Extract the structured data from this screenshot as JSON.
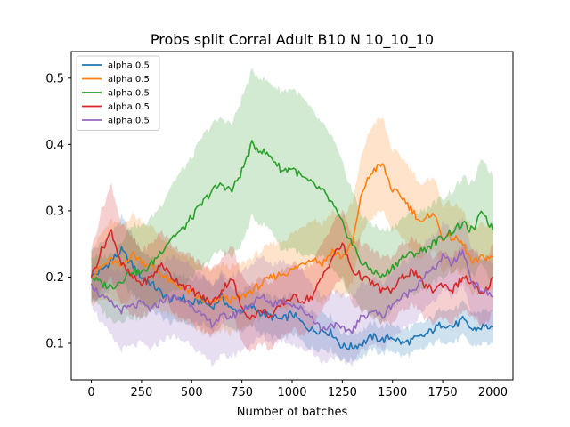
{
  "chart_data": {
    "type": "line",
    "title": "Probs split Corral Adult B10 N 10_10_10",
    "xlabel": "Number of batches",
    "ylabel": "",
    "xlim": [
      -100,
      2100
    ],
    "ylim": [
      0.045,
      0.54
    ],
    "xticks": [
      0,
      250,
      500,
      750,
      1000,
      1250,
      1500,
      1750,
      2000
    ],
    "yticks": [
      0.1,
      0.2,
      0.3,
      0.4,
      0.5
    ],
    "grid": false,
    "legend_position": "top-left",
    "series": [
      {
        "name": "alpha 0.5",
        "color": "#1f77b4",
        "x": [
          0,
          50,
          100,
          150,
          200,
          250,
          300,
          350,
          400,
          450,
          500,
          550,
          600,
          650,
          700,
          750,
          800,
          850,
          900,
          950,
          1000,
          1050,
          1100,
          1150,
          1200,
          1250,
          1300,
          1350,
          1400,
          1450,
          1500,
          1550,
          1600,
          1650,
          1700,
          1750,
          1800,
          1850,
          1900,
          1950,
          2000
        ],
        "y": [
          0.2,
          0.21,
          0.225,
          0.24,
          0.22,
          0.2,
          0.19,
          0.175,
          0.165,
          0.17,
          0.16,
          0.165,
          0.155,
          0.17,
          0.15,
          0.15,
          0.155,
          0.145,
          0.14,
          0.135,
          0.145,
          0.13,
          0.12,
          0.12,
          0.115,
          0.095,
          0.095,
          0.1,
          0.11,
          0.105,
          0.11,
          0.1,
          0.105,
          0.11,
          0.12,
          0.13,
          0.125,
          0.135,
          0.12,
          0.125,
          0.125
        ],
        "band": [
          0.04,
          0.04,
          0.04,
          0.05,
          0.045,
          0.04,
          0.04,
          0.035,
          0.035,
          0.035,
          0.035,
          0.035,
          0.035,
          0.035,
          0.03,
          0.03,
          0.03,
          0.03,
          0.03,
          0.03,
          0.03,
          0.028,
          0.028,
          0.028,
          0.025,
          0.02,
          0.02,
          0.02,
          0.02,
          0.02,
          0.02,
          0.02,
          0.02,
          0.02,
          0.02,
          0.025,
          0.025,
          0.025,
          0.025,
          0.025,
          0.025
        ]
      },
      {
        "name": "alpha 0.5",
        "color": "#ff7f0e",
        "x": [
          0,
          50,
          100,
          150,
          200,
          250,
          300,
          350,
          400,
          450,
          500,
          550,
          600,
          650,
          700,
          750,
          800,
          850,
          900,
          950,
          1000,
          1050,
          1100,
          1150,
          1200,
          1250,
          1300,
          1350,
          1400,
          1450,
          1500,
          1550,
          1600,
          1650,
          1700,
          1750,
          1800,
          1850,
          1900,
          1950,
          2000
        ],
        "y": [
          0.2,
          0.215,
          0.225,
          0.215,
          0.235,
          0.225,
          0.215,
          0.205,
          0.19,
          0.185,
          0.175,
          0.165,
          0.16,
          0.17,
          0.165,
          0.17,
          0.18,
          0.19,
          0.2,
          0.205,
          0.21,
          0.22,
          0.23,
          0.22,
          0.24,
          0.23,
          0.25,
          0.33,
          0.36,
          0.37,
          0.33,
          0.32,
          0.3,
          0.28,
          0.3,
          0.26,
          0.26,
          0.25,
          0.22,
          0.23,
          0.23
        ],
        "band": [
          0.04,
          0.05,
          0.06,
          0.06,
          0.06,
          0.06,
          0.06,
          0.055,
          0.05,
          0.05,
          0.05,
          0.05,
          0.05,
          0.05,
          0.05,
          0.05,
          0.05,
          0.05,
          0.05,
          0.05,
          0.055,
          0.055,
          0.06,
          0.06,
          0.06,
          0.06,
          0.06,
          0.06,
          0.07,
          0.07,
          0.06,
          0.06,
          0.06,
          0.055,
          0.055,
          0.05,
          0.05,
          0.05,
          0.05,
          0.05,
          0.05
        ]
      },
      {
        "name": "alpha 0.5",
        "color": "#2ca02c",
        "x": [
          0,
          50,
          100,
          150,
          200,
          250,
          300,
          350,
          400,
          450,
          500,
          550,
          600,
          650,
          700,
          750,
          800,
          850,
          900,
          950,
          1000,
          1050,
          1100,
          1150,
          1200,
          1250,
          1300,
          1350,
          1400,
          1450,
          1500,
          1550,
          1600,
          1650,
          1700,
          1750,
          1800,
          1850,
          1900,
          1950,
          2000
        ],
        "y": [
          0.2,
          0.19,
          0.185,
          0.195,
          0.21,
          0.205,
          0.22,
          0.24,
          0.26,
          0.27,
          0.29,
          0.31,
          0.33,
          0.34,
          0.33,
          0.36,
          0.4,
          0.39,
          0.38,
          0.36,
          0.365,
          0.35,
          0.34,
          0.33,
          0.31,
          0.28,
          0.25,
          0.22,
          0.21,
          0.2,
          0.215,
          0.23,
          0.235,
          0.24,
          0.25,
          0.26,
          0.27,
          0.28,
          0.27,
          0.3,
          0.27
        ],
        "band": [
          0.03,
          0.04,
          0.05,
          0.06,
          0.07,
          0.07,
          0.07,
          0.07,
          0.08,
          0.09,
          0.09,
          0.1,
          0.1,
          0.1,
          0.1,
          0.11,
          0.11,
          0.11,
          0.11,
          0.12,
          0.12,
          0.12,
          0.11,
          0.1,
          0.1,
          0.09,
          0.08,
          0.07,
          0.07,
          0.07,
          0.06,
          0.06,
          0.06,
          0.06,
          0.06,
          0.06,
          0.06,
          0.07,
          0.07,
          0.08,
          0.08
        ]
      },
      {
        "name": "alpha 0.5",
        "color": "#d62728",
        "x": [
          0,
          50,
          100,
          150,
          200,
          250,
          300,
          350,
          400,
          450,
          500,
          550,
          600,
          650,
          700,
          750,
          800,
          850,
          900,
          950,
          1000,
          1050,
          1100,
          1150,
          1200,
          1250,
          1300,
          1350,
          1400,
          1450,
          1500,
          1550,
          1600,
          1650,
          1700,
          1750,
          1800,
          1850,
          1900,
          1950,
          2000
        ],
        "y": [
          0.2,
          0.24,
          0.27,
          0.22,
          0.2,
          0.19,
          0.2,
          0.22,
          0.2,
          0.19,
          0.18,
          0.17,
          0.16,
          0.18,
          0.2,
          0.15,
          0.14,
          0.15,
          0.14,
          0.16,
          0.17,
          0.165,
          0.17,
          0.2,
          0.23,
          0.25,
          0.21,
          0.2,
          0.19,
          0.18,
          0.18,
          0.2,
          0.21,
          0.19,
          0.18,
          0.19,
          0.18,
          0.2,
          0.19,
          0.17,
          0.2
        ],
        "band": [
          0.04,
          0.06,
          0.07,
          0.06,
          0.06,
          0.05,
          0.05,
          0.05,
          0.05,
          0.05,
          0.05,
          0.05,
          0.05,
          0.05,
          0.05,
          0.05,
          0.05,
          0.05,
          0.05,
          0.05,
          0.05,
          0.05,
          0.05,
          0.05,
          0.05,
          0.05,
          0.05,
          0.05,
          0.05,
          0.05,
          0.05,
          0.05,
          0.05,
          0.05,
          0.05,
          0.05,
          0.05,
          0.05,
          0.05,
          0.05,
          0.05
        ]
      },
      {
        "name": "alpha 0.5",
        "color": "#9467bd",
        "x": [
          0,
          50,
          100,
          150,
          200,
          250,
          300,
          350,
          400,
          450,
          500,
          550,
          600,
          650,
          700,
          750,
          800,
          850,
          900,
          950,
          1000,
          1050,
          1100,
          1150,
          1200,
          1250,
          1300,
          1350,
          1400,
          1450,
          1500,
          1550,
          1600,
          1650,
          1700,
          1750,
          1800,
          1850,
          1900,
          1950,
          2000
        ],
        "y": [
          0.19,
          0.17,
          0.16,
          0.15,
          0.155,
          0.16,
          0.15,
          0.165,
          0.17,
          0.165,
          0.16,
          0.14,
          0.13,
          0.14,
          0.14,
          0.15,
          0.16,
          0.17,
          0.16,
          0.165,
          0.16,
          0.15,
          0.14,
          0.12,
          0.13,
          0.12,
          0.12,
          0.14,
          0.15,
          0.14,
          0.16,
          0.17,
          0.18,
          0.2,
          0.21,
          0.23,
          0.22,
          0.24,
          0.19,
          0.18,
          0.17
        ],
        "band": [
          0.03,
          0.04,
          0.05,
          0.06,
          0.06,
          0.06,
          0.06,
          0.06,
          0.06,
          0.06,
          0.06,
          0.06,
          0.06,
          0.06,
          0.06,
          0.06,
          0.06,
          0.06,
          0.06,
          0.06,
          0.06,
          0.06,
          0.05,
          0.05,
          0.05,
          0.05,
          0.05,
          0.05,
          0.05,
          0.05,
          0.05,
          0.05,
          0.05,
          0.05,
          0.05,
          0.05,
          0.05,
          0.05,
          0.05,
          0.05,
          0.05
        ]
      }
    ]
  }
}
